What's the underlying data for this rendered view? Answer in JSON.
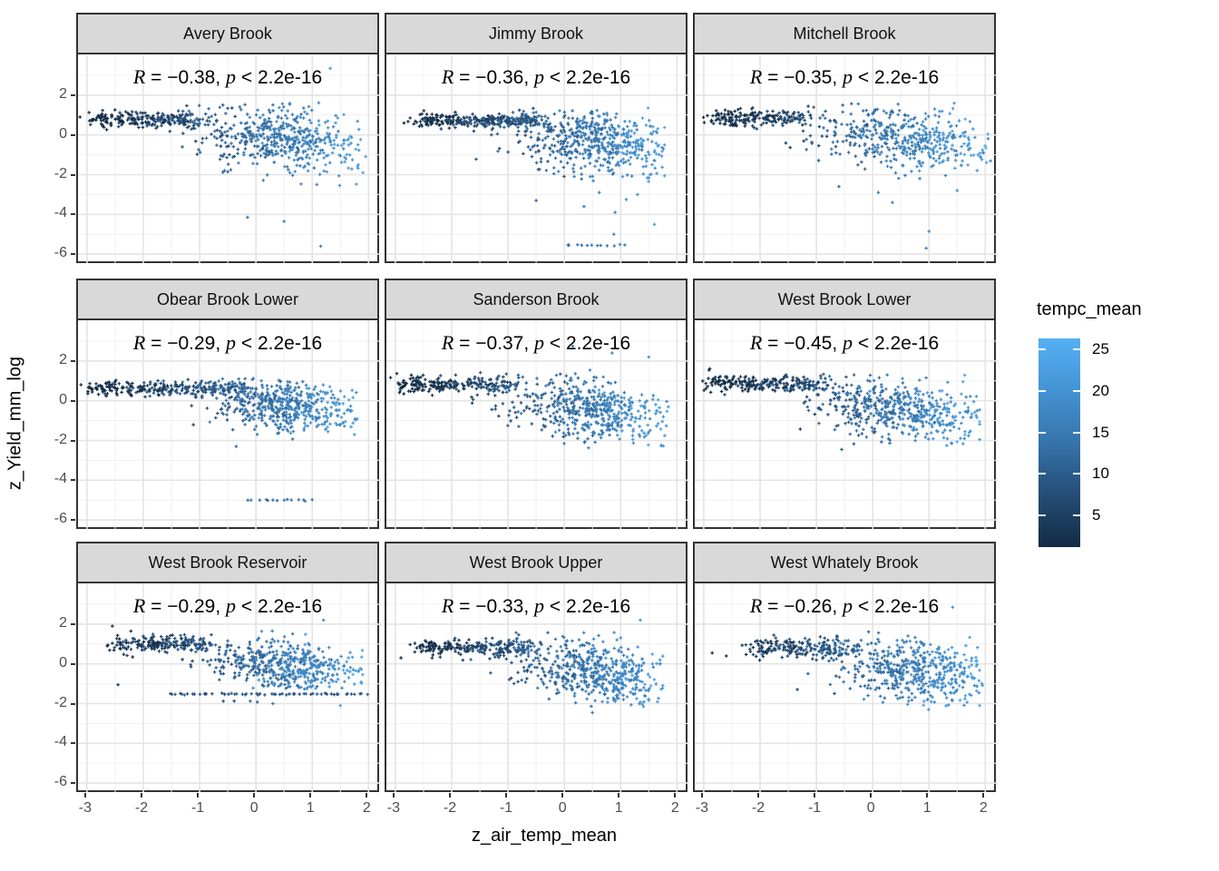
{
  "figure": {
    "x_axis_title": "z_air_temp_mean",
    "y_axis_title": "z_Yield_mm_log",
    "colors": {
      "strip_bg": "#d9d9d9",
      "panel_border": "#333333",
      "grid_major": "#e4e4e4",
      "grid_minor": "#f1f1f1",
      "tick_label": "#4d4d4d"
    }
  },
  "legend": {
    "title": "tempc_mean",
    "tick_values": [
      25,
      20,
      15,
      10,
      5
    ],
    "domain": [
      1.2,
      26.3
    ],
    "gradient_stops": [
      {
        "at": 0.0,
        "color": "#55b0f5"
      },
      {
        "at": 0.25,
        "color": "#4493d3"
      },
      {
        "at": 0.5,
        "color": "#3674ab"
      },
      {
        "at": 0.75,
        "color": "#254d77"
      },
      {
        "at": 1.0,
        "color": "#132b43"
      }
    ]
  },
  "chart_data": {
    "type": "scatter",
    "x_variable": "z_air_temp_mean",
    "y_variable": "z_Yield_mm_log",
    "color_variable": "tempc_mean",
    "x_domain": [
      -3.16,
      2.22
    ],
    "y_domain": [
      -6.45,
      4.05
    ],
    "x_ticks": [
      -3,
      -2,
      -1,
      0,
      1,
      2
    ],
    "y_ticks": [
      2,
      0,
      -2,
      -4,
      -6
    ],
    "x_minor": [
      -2.5,
      -1.5,
      -0.5,
      0.5,
      1.5
    ],
    "y_minor": [
      3,
      1,
      -1,
      -3,
      -5
    ],
    "grid": true,
    "legend_position": "right",
    "annotation_template": {
      "r_symbol": "R",
      "equals": " = ",
      "comma": ", ",
      "p_symbol": "p",
      "less_than": " < "
    },
    "p_value": "2.2e-16",
    "facets": [
      {
        "name": "Avery Brook",
        "r_value": "−0.38",
        "r": -0.38,
        "seed": 11,
        "distribution": {
          "n": 720,
          "cold": {
            "frac": 0.3,
            "x0": -2.85,
            "x1": -1.05,
            "y": 0.78,
            "ysd": 0.18
          },
          "cloud": {
            "xm": 0.45,
            "xsd": 0.78,
            "ym": -0.05,
            "slope": -0.28,
            "ysd": 0.82,
            "xmin": -1.9,
            "xmax": 1.95,
            "ymin": -2.55,
            "ymax": 1.7
          },
          "rows": [],
          "outliers": [
            [
              1.32,
              3.35
            ],
            [
              1.15,
              -5.6
            ],
            [
              0.5,
              -4.35
            ],
            [
              -0.15,
              -4.15
            ],
            [
              1.9,
              -1.9
            ]
          ]
        }
      },
      {
        "name": "Jimmy Brook",
        "r_value": "−0.36",
        "r": -0.36,
        "seed": 22,
        "distribution": {
          "n": 820,
          "cold": {
            "frac": 0.34,
            "x0": -2.62,
            "x1": -0.45,
            "y": 0.72,
            "ysd": 0.16
          },
          "cloud": {
            "xm": 0.5,
            "xsd": 0.72,
            "ym": -0.15,
            "slope": -0.3,
            "ysd": 0.75,
            "xmin": -1.6,
            "xmax": 1.78,
            "ymin": -2.35,
            "ymax": 1.5
          },
          "rows": [
            {
              "y": -5.55,
              "x0": 0.02,
              "x1": 1.08,
              "n": 12,
              "temp": 14
            }
          ],
          "outliers": [
            [
              0.88,
              -5.0
            ],
            [
              1.6,
              -4.5
            ],
            [
              -0.5,
              -3.3
            ],
            [
              0.35,
              -3.6
            ],
            [
              1.1,
              -3.25
            ],
            [
              0.62,
              -2.9
            ],
            [
              0.9,
              -3.9
            ],
            [
              1.3,
              -3.0
            ]
          ]
        }
      },
      {
        "name": "Mitchell Brook",
        "r_value": "−0.35",
        "r": -0.35,
        "seed": 33,
        "distribution": {
          "n": 640,
          "cold": {
            "frac": 0.3,
            "x0": -2.9,
            "x1": -1.25,
            "y": 0.85,
            "ysd": 0.2
          },
          "cloud": {
            "xm": 0.6,
            "xsd": 0.85,
            "ym": 0.0,
            "slope": -0.3,
            "ysd": 0.75,
            "xmin": -1.7,
            "xmax": 2.1,
            "ymin": -2.2,
            "ymax": 1.6
          },
          "rows": [],
          "outliers": [
            [
              0.95,
              -5.7
            ],
            [
              1.0,
              -4.85
            ],
            [
              0.35,
              -3.4
            ],
            [
              1.5,
              -2.8
            ],
            [
              -0.6,
              -2.6
            ],
            [
              0.1,
              -2.9
            ]
          ]
        }
      },
      {
        "name": "Obear Brook Lower",
        "r_value": "−0.29",
        "r": -0.29,
        "seed": 44,
        "distribution": {
          "n": 780,
          "cold": {
            "frac": 0.38,
            "x0": -2.95,
            "x1": -0.1,
            "y": 0.62,
            "ysd": 0.2
          },
          "cloud": {
            "xm": 0.55,
            "xsd": 0.7,
            "ym": -0.2,
            "slope": -0.22,
            "ysd": 0.62,
            "xmin": -1.4,
            "xmax": 1.8,
            "ymin": -2.35,
            "ymax": 1.1
          },
          "rows": [
            {
              "y": -5.0,
              "x0": -0.15,
              "x1": 1.02,
              "n": 14,
              "temp": 13
            }
          ],
          "outliers": [
            [
              -0.35,
              -2.3
            ],
            [
              1.75,
              -1.7
            ]
          ]
        }
      },
      {
        "name": "Sanderson Brook",
        "r_value": "−0.37",
        "r": -0.37,
        "seed": 55,
        "distribution": {
          "n": 730,
          "cold": {
            "frac": 0.3,
            "x0": -2.95,
            "x1": -0.9,
            "y": 0.8,
            "ysd": 0.22
          },
          "cloud": {
            "xm": 0.5,
            "xsd": 0.75,
            "ym": -0.3,
            "slope": -0.3,
            "ysd": 0.75,
            "xmin": -1.8,
            "xmax": 1.85,
            "ymin": -2.4,
            "ymax": 1.6
          },
          "rows": [],
          "outliers": [
            [
              0.15,
              2.75
            ],
            [
              1.5,
              2.2
            ],
            [
              0.85,
              2.4
            ]
          ]
        }
      },
      {
        "name": "West Brook Lower",
        "r_value": "−0.45",
        "r": -0.45,
        "seed": 66,
        "distribution": {
          "n": 740,
          "cold": {
            "frac": 0.32,
            "x0": -2.9,
            "x1": -0.75,
            "y": 0.85,
            "ysd": 0.2
          },
          "cloud": {
            "xm": 0.5,
            "xsd": 0.78,
            "ym": -0.35,
            "slope": -0.33,
            "ysd": 0.72,
            "xmin": -1.7,
            "xmax": 1.9,
            "ymin": -2.3,
            "ymax": 1.3
          },
          "rows": [],
          "outliers": [
            [
              -0.55,
              -2.45
            ],
            [
              1.9,
              -1.95
            ]
          ]
        }
      },
      {
        "name": "West Brook Reservoir",
        "r_value": "−0.29",
        "r": -0.29,
        "seed": 77,
        "distribution": {
          "n": 680,
          "cold": {
            "frac": 0.3,
            "x0": -2.45,
            "x1": -0.85,
            "y": 1.0,
            "ysd": 0.22
          },
          "cloud": {
            "xm": 0.55,
            "xsd": 0.7,
            "ym": 0.05,
            "slope": -0.28,
            "ysd": 0.6,
            "xmin": -1.6,
            "xmax": 1.9,
            "ymin": -1.35,
            "ymax": 1.8
          },
          "rows": [
            {
              "y": -1.52,
              "x0": -1.55,
              "x1": 1.95,
              "n": 58,
              "temp": 9
            },
            {
              "y": -1.88,
              "x0": -0.6,
              "x1": 0.1,
              "n": 4,
              "temp": 9
            }
          ],
          "outliers": [
            [
              -2.45,
              -1.05
            ],
            [
              -2.55,
              1.9
            ],
            [
              1.2,
              2.2
            ],
            [
              0.3,
              -2.0
            ],
            [
              1.5,
              -2.1
            ]
          ]
        }
      },
      {
        "name": "West Brook Upper",
        "r_value": "−0.33",
        "r": -0.33,
        "seed": 88,
        "distribution": {
          "n": 770,
          "cold": {
            "frac": 0.32,
            "x0": -2.55,
            "x1": -0.55,
            "y": 0.8,
            "ysd": 0.2
          },
          "cloud": {
            "xm": 0.55,
            "xsd": 0.75,
            "ym": -0.3,
            "slope": -0.3,
            "ysd": 0.78,
            "xmin": -1.9,
            "xmax": 1.75,
            "ymin": -2.15,
            "ymax": 1.6
          },
          "rows": [],
          "outliers": [
            [
              1.35,
              2.2
            ],
            [
              -2.9,
              0.3
            ],
            [
              0.5,
              -2.45
            ]
          ]
        }
      },
      {
        "name": "West Whately Brook",
        "r_value": "−0.26",
        "r": -0.26,
        "seed": 99,
        "distribution": {
          "n": 700,
          "cold": {
            "frac": 0.28,
            "x0": -2.2,
            "x1": -0.35,
            "y": 0.8,
            "ysd": 0.25
          },
          "cloud": {
            "xm": 0.75,
            "xsd": 0.72,
            "ym": -0.1,
            "slope": -0.3,
            "ysd": 0.78,
            "xmin": -1.5,
            "xmax": 1.95,
            "ymin": -2.35,
            "ymax": 1.7
          },
          "rows": [],
          "outliers": [
            [
              1.42,
              2.85
            ],
            [
              -2.85,
              0.55
            ],
            [
              -2.6,
              0.4
            ],
            [
              1.9,
              -2.1
            ]
          ]
        }
      }
    ]
  }
}
